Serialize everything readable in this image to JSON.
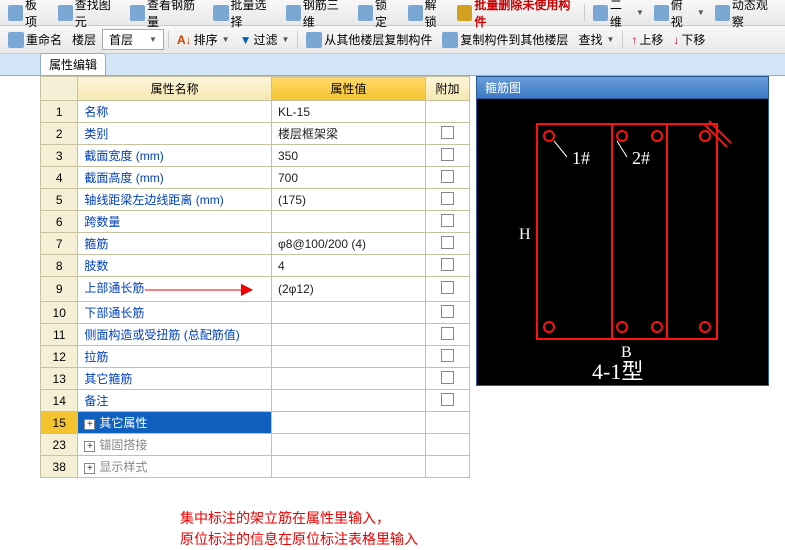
{
  "toolbar1": {
    "items": [
      "板项",
      "查找图元",
      "查看钢筋量",
      "批量选择",
      "钢筋三维",
      "锁定",
      "解锁"
    ],
    "action": "批量删除未使用构件",
    "dropdowns": [
      "二维",
      "俯视",
      "动态观察"
    ]
  },
  "toolbar2": {
    "rename": "重命名",
    "floor_label": "楼层",
    "floor_value": "首层",
    "sort": "排序",
    "filter": "过滤",
    "copy_from": "从其他楼层复制构件",
    "copy_to": "复制构件到其他楼层",
    "find": "查找",
    "up": "上移",
    "down": "下移"
  },
  "tab": "属性编辑",
  "headers": {
    "name": "属性名称",
    "value": "属性值",
    "addon": "附加"
  },
  "rows": [
    {
      "n": "1",
      "name": "名称",
      "value": "KL-15",
      "chk": false
    },
    {
      "n": "2",
      "name": "类别",
      "value": "楼层框架梁",
      "chk": true
    },
    {
      "n": "3",
      "name": "截面宽度 (mm)",
      "value": "350",
      "chk": true
    },
    {
      "n": "4",
      "name": "截面高度 (mm)",
      "value": "700",
      "chk": true
    },
    {
      "n": "5",
      "name": "轴线距梁左边线距离 (mm)",
      "value": "(175)",
      "chk": true
    },
    {
      "n": "6",
      "name": "跨数量",
      "value": "",
      "chk": true
    },
    {
      "n": "7",
      "name": "箍筋",
      "value": "φ8@100/200 (4)",
      "chk": true
    },
    {
      "n": "8",
      "name": "肢数",
      "value": "4",
      "chk": true
    },
    {
      "n": "9",
      "name": "上部通长筋",
      "value": "(2φ12)",
      "chk": true,
      "arrow": true
    },
    {
      "n": "10",
      "name": "下部通长筋",
      "value": "",
      "chk": true
    },
    {
      "n": "11",
      "name": "侧面构造或受扭筋 (总配筋值)",
      "value": "",
      "chk": true
    },
    {
      "n": "12",
      "name": "拉筋",
      "value": "",
      "chk": true
    },
    {
      "n": "13",
      "name": "其它箍筋",
      "value": "",
      "chk": true
    },
    {
      "n": "14",
      "name": "备注",
      "value": "",
      "chk": true
    },
    {
      "n": "15",
      "name": "其它属性",
      "value": "",
      "chk": false,
      "hl": true,
      "plus": true
    },
    {
      "n": "23",
      "name": "锚固搭接",
      "value": "",
      "chk": false,
      "gray": true,
      "plus": true
    },
    {
      "n": "38",
      "name": "显示样式",
      "value": "",
      "chk": false,
      "gray": true,
      "plus": true
    }
  ],
  "diagram": {
    "title": "箍筋图",
    "label1": "1#",
    "label2": "2#",
    "labelH": "H",
    "labelB": "B",
    "labelType": "4-1型",
    "colors": {
      "stroke": "#ff1010",
      "bg": "#000",
      "text": "#fff"
    }
  },
  "note_line1": "集中标注的架立筋在属性里输入，",
  "note_line2": "原位标注的信息在原位标注表格里输入"
}
